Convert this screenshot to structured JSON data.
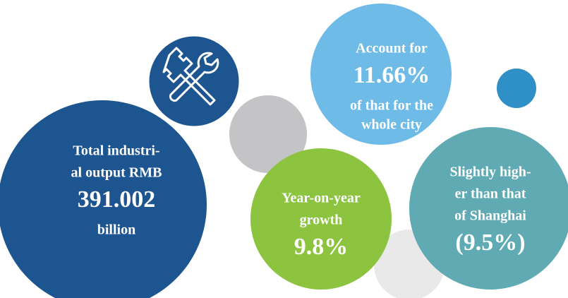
{
  "bubbles": [
    {
      "lines": [
        "Total industri-",
        "al output RMB"
      ],
      "figure": "391.002",
      "after": [
        "billion"
      ]
    },
    {
      "lines": [
        "Year-on-year",
        "growth"
      ],
      "figure": "9.8%",
      "after": []
    },
    {
      "lines": [
        "Account for"
      ],
      "figure": "11.66%",
      "after": [
        "of that for the",
        "whole city"
      ]
    },
    {
      "lines": [
        "Slightly high-",
        "er than that",
        "of Shanghai"
      ],
      "figure": "(9.5%)",
      "after": []
    }
  ]
}
